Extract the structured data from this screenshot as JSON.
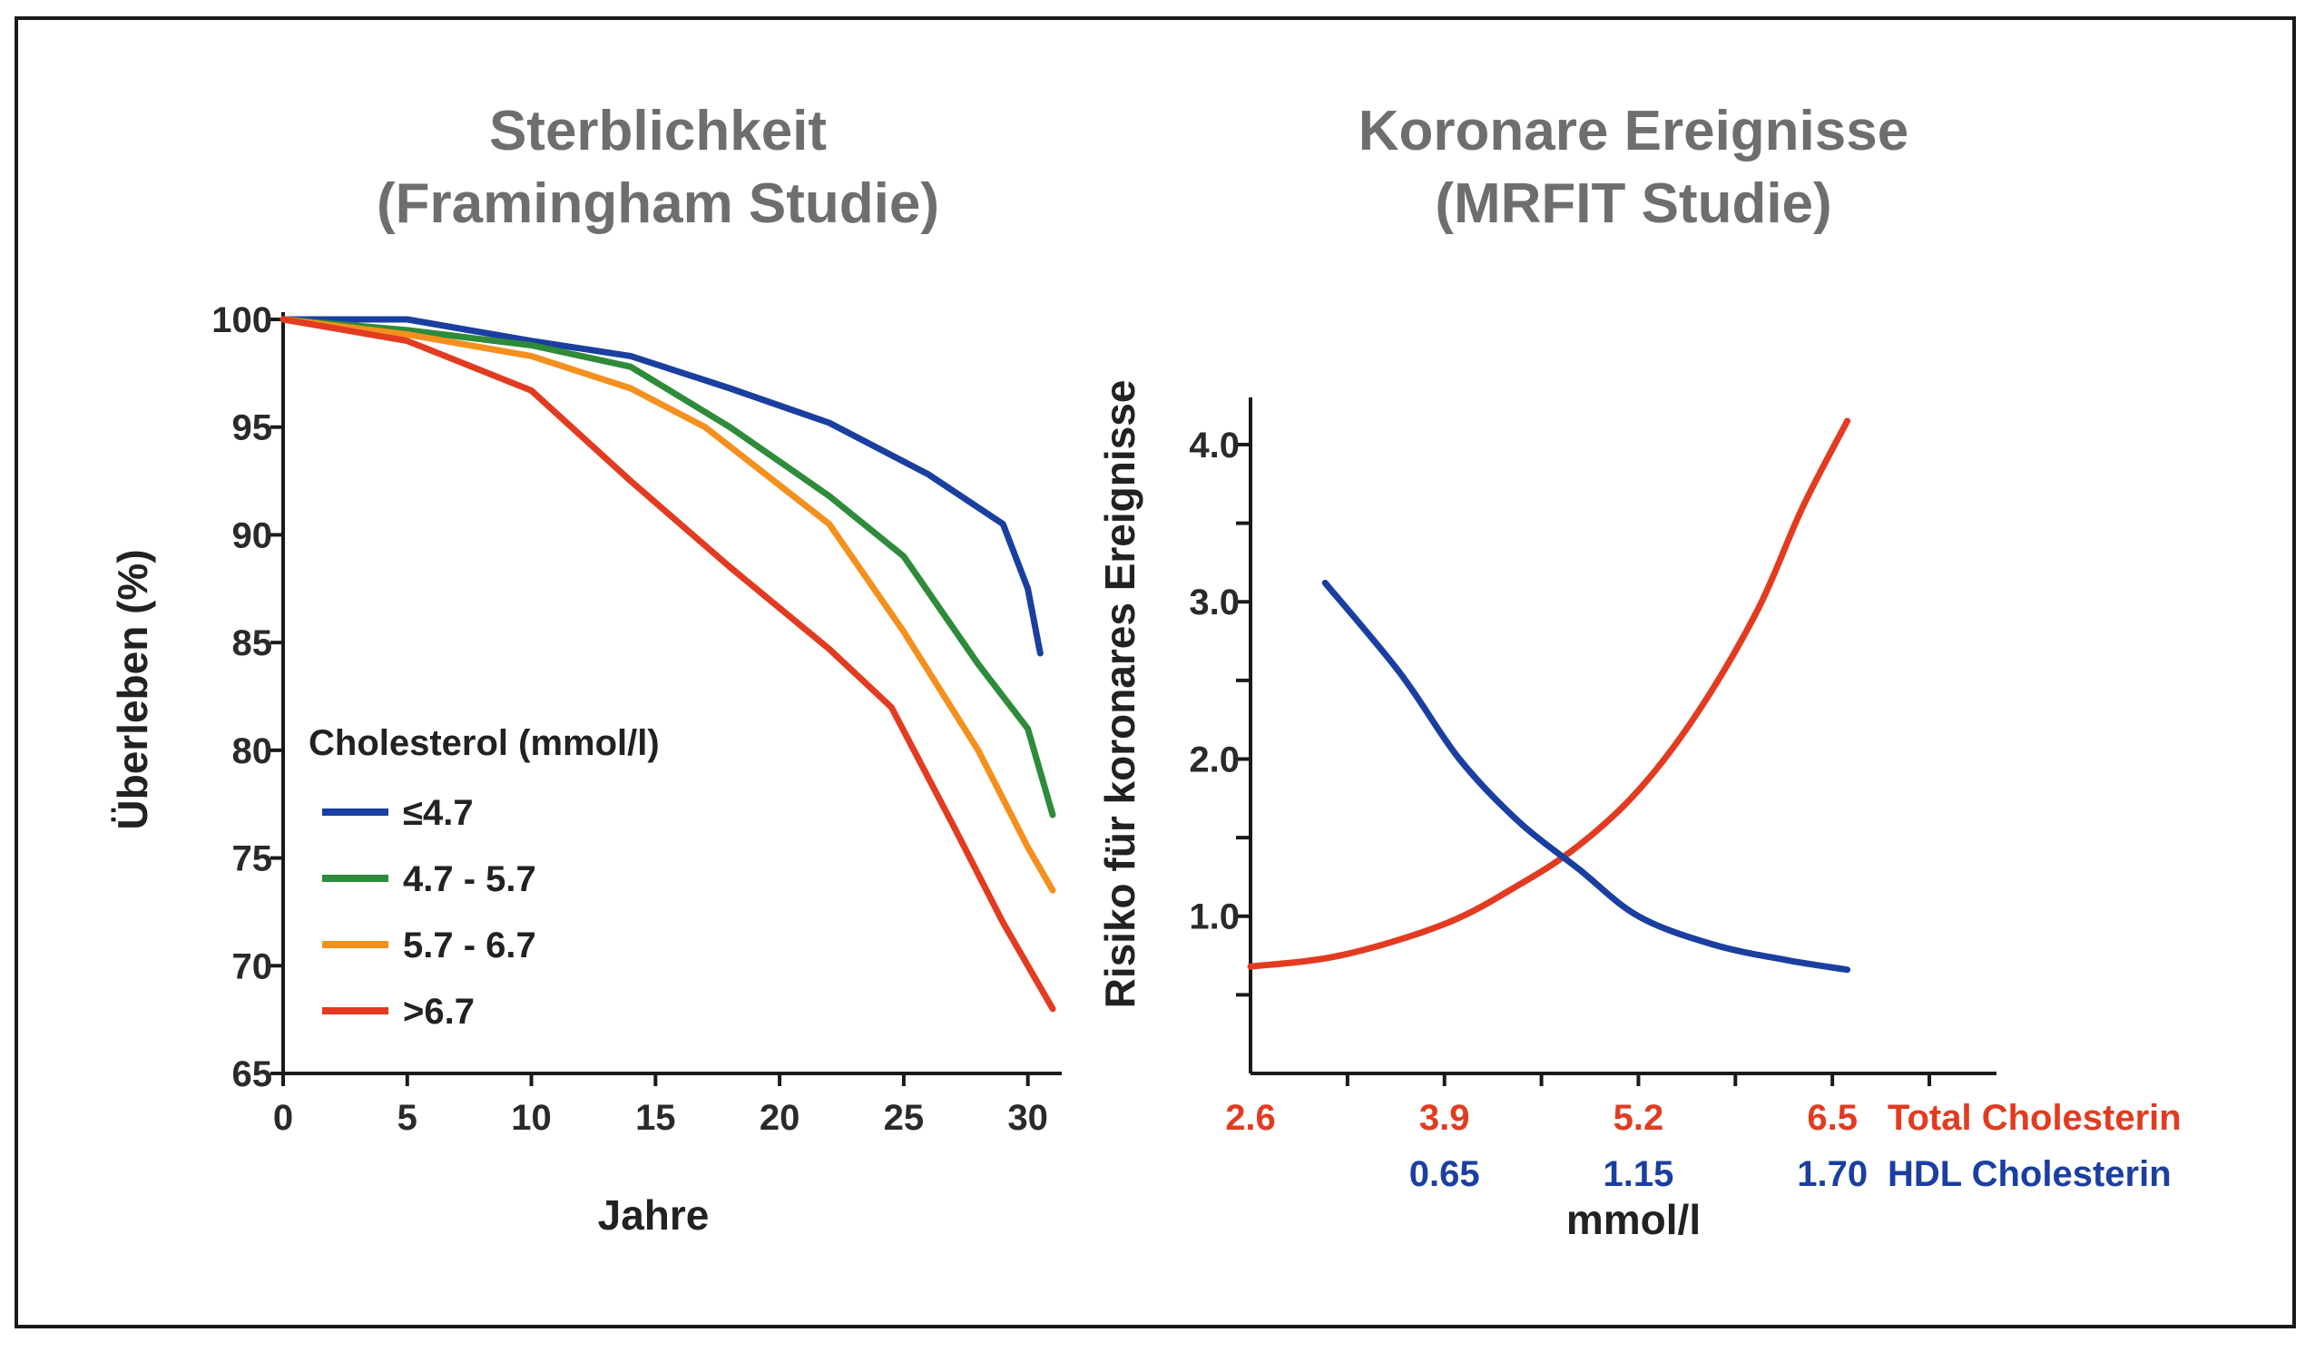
{
  "colors": {
    "blue": "#1a3fa0",
    "green": "#2e8b3a",
    "orange": "#f4901e",
    "red": "#e23b20",
    "title_gray": "#6e6e6e",
    "axis": "#1a1a1a"
  },
  "chart_data": [
    {
      "type": "line",
      "title": [
        "Sterblichkeit",
        "(Framingham Studie)"
      ],
      "xlabel": "Jahre",
      "ylabel": "Überleben (%)",
      "xlim": [
        0,
        31
      ],
      "ylim": [
        65,
        100
      ],
      "xticks": [
        0,
        5,
        10,
        15,
        20,
        25,
        30
      ],
      "yticks": [
        65,
        70,
        75,
        80,
        85,
        90,
        95,
        100
      ],
      "legend_title": "Cholesterol (mmol/l)",
      "legend_position": "bottom-left",
      "series": [
        {
          "name": "≤4.7",
          "color": "#1a3fa0",
          "points": [
            [
              0,
              100
            ],
            [
              5,
              100
            ],
            [
              10,
              99
            ],
            [
              14,
              98.3
            ],
            [
              18,
              96.8
            ],
            [
              22,
              95.2
            ],
            [
              26,
              92.8
            ],
            [
              29,
              90.5
            ],
            [
              30,
              87.5
            ],
            [
              30.5,
              84.5
            ]
          ]
        },
        {
          "name": "4.7 - 5.7",
          "color": "#2e8b3a",
          "points": [
            [
              0,
              100
            ],
            [
              5,
              99.5
            ],
            [
              10,
              98.8
            ],
            [
              14,
              97.8
            ],
            [
              18,
              95
            ],
            [
              22,
              91.8
            ],
            [
              25,
              89
            ],
            [
              28,
              84
            ],
            [
              30,
              81
            ],
            [
              31,
              77
            ]
          ]
        },
        {
          "name": "5.7 - 6.7",
          "color": "#f4901e",
          "points": [
            [
              0,
              100
            ],
            [
              5,
              99.3
            ],
            [
              10,
              98.3
            ],
            [
              14,
              96.8
            ],
            [
              17,
              95
            ],
            [
              22,
              90.5
            ],
            [
              25,
              85.5
            ],
            [
              28,
              80
            ],
            [
              30,
              75.5
            ],
            [
              31,
              73.5
            ]
          ]
        },
        {
          "name": ">6.7",
          "color": "#e23b20",
          "points": [
            [
              0,
              100
            ],
            [
              5,
              99
            ],
            [
              10,
              96.7
            ],
            [
              14,
              92.5
            ],
            [
              18,
              88.5
            ],
            [
              22,
              84.7
            ],
            [
              24.5,
              82
            ],
            [
              27,
              76.5
            ],
            [
              29,
              72
            ],
            [
              31,
              68
            ]
          ]
        }
      ]
    },
    {
      "type": "line",
      "title": [
        "Koronare Ereignisse",
        "(MRFIT Studie)"
      ],
      "xlabel": "mmol/l",
      "ylabel": "Risiko für koronares Ereignisse",
      "xlim": [
        2.6,
        7.6
      ],
      "ylim": [
        0,
        4.3
      ],
      "yticks": [
        1.0,
        2.0,
        3.0,
        4.0
      ],
      "ytick_labels": [
        "1.0",
        "2.0",
        "3.0",
        "4.0"
      ],
      "x_axis_rows": [
        {
          "name": "Total Cholesterin",
          "color": "#e23b20",
          "ticks": [
            2.6,
            3.9,
            5.2,
            6.5
          ],
          "labels": [
            "2.6",
            "3.9",
            "5.2",
            "6.5"
          ]
        },
        {
          "name": "HDL Cholesterin",
          "color": "#1a3fa0",
          "ticks": [
            3.9,
            5.2,
            6.5
          ],
          "labels": [
            "0.65",
            "1.15",
            "1.70"
          ]
        }
      ],
      "series": [
        {
          "name": "Total Cholesterin",
          "color": "#e23b20",
          "points": [
            [
              2.6,
              0.68
            ],
            [
              3.2,
              0.75
            ],
            [
              3.9,
              0.95
            ],
            [
              4.4,
              1.2
            ],
            [
              4.8,
              1.45
            ],
            [
              5.2,
              1.8
            ],
            [
              5.6,
              2.3
            ],
            [
              6.0,
              2.95
            ],
            [
              6.3,
              3.6
            ],
            [
              6.6,
              4.15
            ]
          ]
        },
        {
          "name": "HDL Cholesterin",
          "color": "#1a3fa0",
          "points": [
            [
              3.1,
              3.12
            ],
            [
              3.6,
              2.55
            ],
            [
              4.0,
              2.0
            ],
            [
              4.4,
              1.6
            ],
            [
              4.8,
              1.3
            ],
            [
              5.2,
              1.0
            ],
            [
              5.7,
              0.82
            ],
            [
              6.2,
              0.72
            ],
            [
              6.6,
              0.66
            ]
          ]
        }
      ]
    }
  ]
}
